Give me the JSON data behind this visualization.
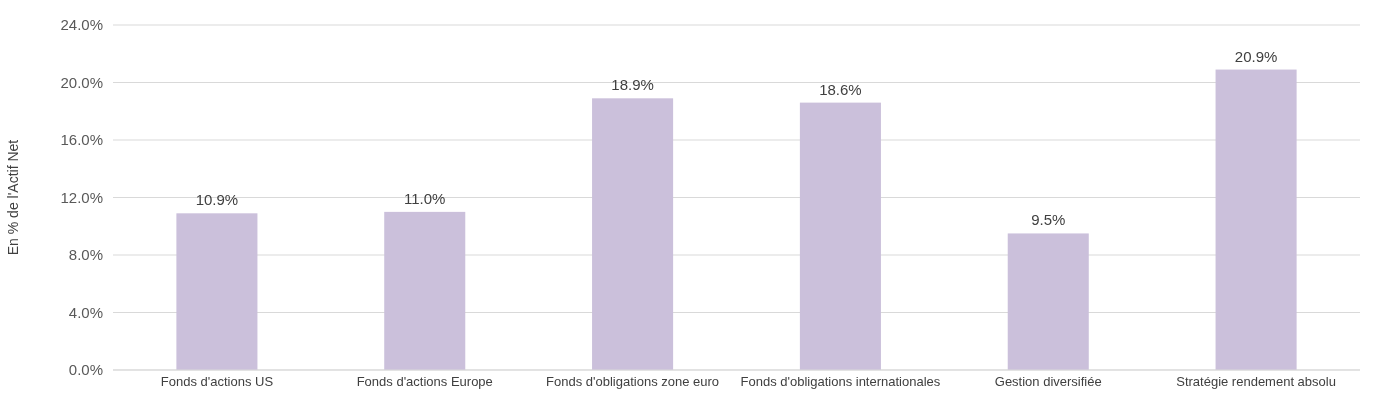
{
  "chart_data": {
    "type": "bar",
    "ylabel": "En % de l'Actif Net",
    "categories": [
      "Fonds d'actions US",
      "Fonds d'actions Europe",
      "Fonds d'obligations zone euro",
      "Fonds d'obligations internationales",
      "Gestion diversifiée",
      "Stratégie rendement absolu"
    ],
    "values": [
      10.9,
      11.0,
      18.9,
      18.6,
      9.5,
      20.9
    ],
    "value_labels": [
      "10.9%",
      "11.0%",
      "18.9%",
      "18.6%",
      "9.5%",
      "20.9%"
    ],
    "color": "#cbc0db",
    "ylim": [
      0,
      24
    ],
    "yticks": [
      {
        "value": 0,
        "label": "0.0%"
      },
      {
        "value": 4,
        "label": "4.0%"
      },
      {
        "value": 8,
        "label": "8.0%"
      },
      {
        "value": 12,
        "label": "12.0%"
      },
      {
        "value": 16,
        "label": "16.0%"
      },
      {
        "value": 20,
        "label": "20.0%"
      },
      {
        "value": 24,
        "label": "24.0%"
      }
    ],
    "grid": "y"
  }
}
